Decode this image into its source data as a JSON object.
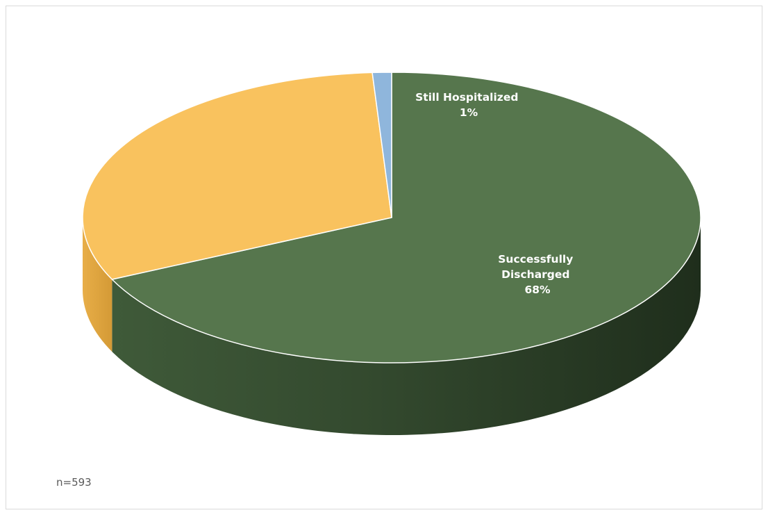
{
  "chart_data": {
    "type": "pie",
    "style": "3d",
    "slices": [
      {
        "label": "Successfully Discharged",
        "value": 68,
        "display": "68%",
        "color": "#56764d",
        "labeled": true
      },
      {
        "label": "",
        "value": 31,
        "display": "",
        "color": "#f9c25e",
        "labeled": false
      },
      {
        "label": "Still Hospitalized",
        "value": 1,
        "display": "1%",
        "color": "#8fb6dc",
        "labeled": true
      }
    ],
    "title": "",
    "legend": "none"
  },
  "note": "n=593"
}
